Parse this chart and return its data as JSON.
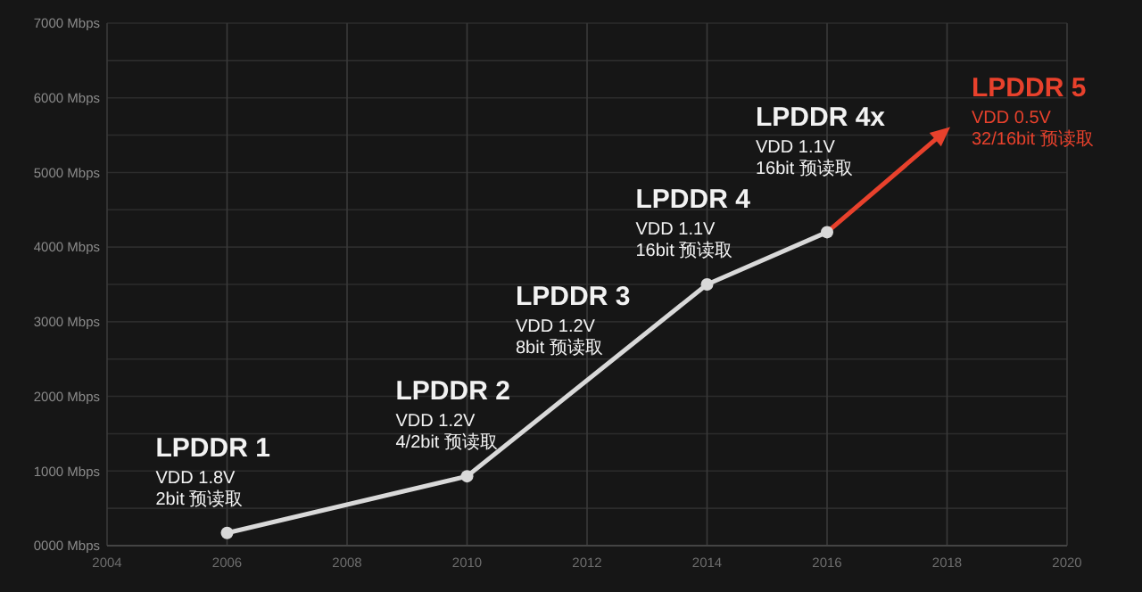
{
  "chart_data": {
    "type": "line",
    "xlim": [
      2004,
      2020
    ],
    "xticks": [
      2004,
      2006,
      2008,
      2010,
      2012,
      2014,
      2016,
      2018,
      2020
    ],
    "ylim": [
      0,
      7000
    ],
    "yticks": [
      {
        "value": 0,
        "label": "0000 Mbps"
      },
      {
        "value": 500,
        "label": null
      },
      {
        "value": 1000,
        "label": "1000 Mbps"
      },
      {
        "value": 1500,
        "label": null
      },
      {
        "value": 2000,
        "label": "2000 Mbps"
      },
      {
        "value": 2500,
        "label": null
      },
      {
        "value": 3000,
        "label": "3000 Mbps"
      },
      {
        "value": 3500,
        "label": null
      },
      {
        "value": 4000,
        "label": "4000 Mbps"
      },
      {
        "value": 4500,
        "label": null
      },
      {
        "value": 5000,
        "label": "5000 Mbps"
      },
      {
        "value": 5500,
        "label": null
      },
      {
        "value": 6000,
        "label": "6000 Mbps"
      },
      {
        "value": 6500,
        "label": null
      },
      {
        "value": 7000,
        "label": "7000 Mbps"
      }
    ],
    "grid": true,
    "series": [
      {
        "color": "#d9d9d9",
        "marker": "circle",
        "x": [
          2006,
          2010,
          2014,
          2016
        ],
        "values": [
          170,
          930,
          3500,
          4200
        ]
      }
    ],
    "annotations": [
      {
        "text": "LPDDR 1\nVDD 1.8V\n2bit 预读取",
        "x": 2006,
        "y": 170
      },
      {
        "text": "LPDDR 2\nVDD 1.2V\n4/2bit 预读取",
        "x": 2010,
        "y": 930
      },
      {
        "text": "LPDDR 3\nVDD 1.2V\n8bit 预读取",
        "x": 2012,
        "y": 2200
      },
      {
        "text": "LPDDR 4\nVDD 1.1V\n16bit 预读取",
        "x": 2014,
        "y": 3500
      },
      {
        "text": "LPDDR 4x\nVDD 1.1V\n16bit 预读取",
        "x": 2016,
        "y": 4200
      },
      "LPDDR 5\nVDD 0.5V\n32/16bit 预读取"
    ]
  }
}
